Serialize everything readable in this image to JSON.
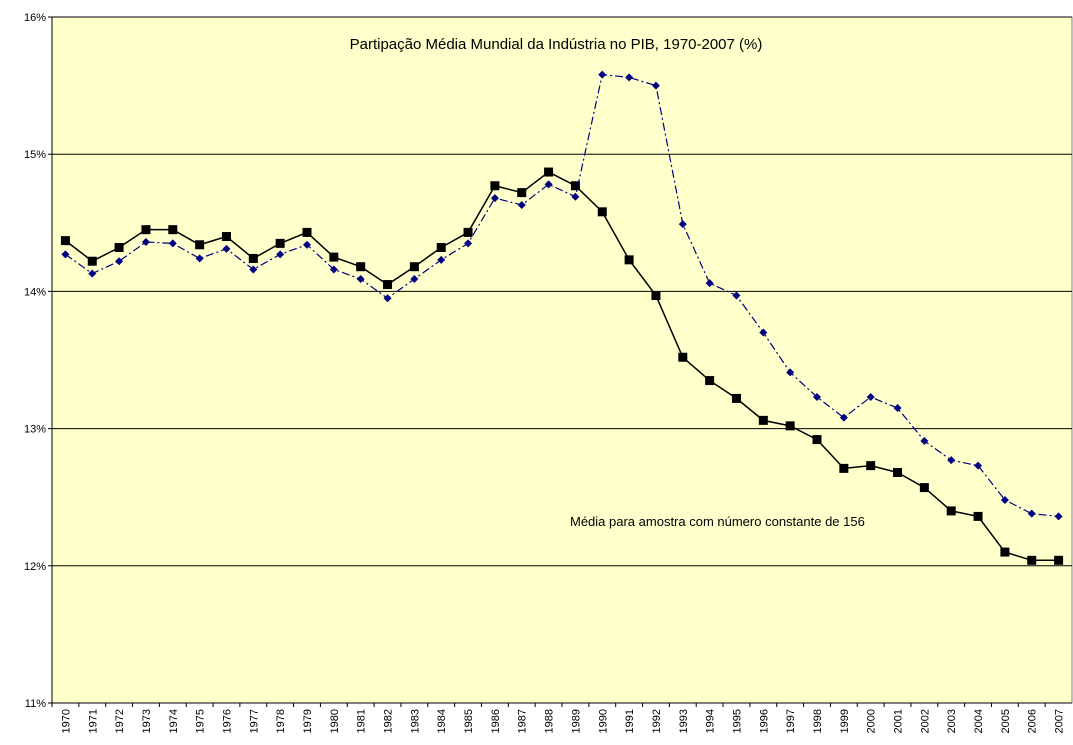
{
  "chart_data": {
    "type": "line",
    "title": "Partipação Média Mundial da Indústria no PIB, 1970-2007 (%)",
    "annotations": [
      "Média para amostra com número constante de 156"
    ],
    "categories": [
      "1970",
      "1971",
      "1972",
      "1973",
      "1974",
      "1975",
      "1976",
      "1977",
      "1978",
      "1979",
      "1980",
      "1981",
      "1982",
      "1983",
      "1984",
      "1985",
      "1986",
      "1987",
      "1988",
      "1989",
      "1990",
      "1991",
      "1992",
      "1993",
      "1994",
      "1995",
      "1996",
      "1997",
      "1998",
      "1999",
      "2000",
      "2001",
      "2002",
      "2003",
      "2004",
      "2005",
      "2006",
      "2007"
    ],
    "series": [
      {
        "color": "#000000",
        "line": "solid",
        "marker": "square",
        "values": [
          14.37,
          14.22,
          14.32,
          14.45,
          14.45,
          14.34,
          14.4,
          14.24,
          14.35,
          14.43,
          14.25,
          14.18,
          14.05,
          14.18,
          14.32,
          14.43,
          14.77,
          14.72,
          14.87,
          14.77,
          14.58,
          14.23,
          13.97,
          13.52,
          13.35,
          13.22,
          13.06,
          13.02,
          12.92,
          12.71,
          12.73,
          12.68,
          12.57,
          12.4,
          12.36,
          12.1,
          12.04,
          12.04
        ]
      },
      {
        "color": "#000080",
        "line": "dashdot",
        "marker": "diamond",
        "values": [
          14.27,
          14.13,
          14.22,
          14.36,
          14.35,
          14.24,
          14.31,
          14.16,
          14.27,
          14.34,
          14.16,
          14.09,
          13.95,
          14.09,
          14.23,
          14.35,
          14.68,
          14.63,
          14.78,
          14.69,
          15.58,
          15.56,
          15.5,
          14.49,
          14.06,
          13.97,
          13.7,
          13.41,
          13.23,
          13.08,
          13.23,
          13.15,
          12.91,
          12.77,
          12.73,
          12.48,
          12.38,
          12.36
        ]
      }
    ],
    "ylim": [
      11,
      16
    ],
    "yticks": [
      {
        "value": 11,
        "label": "11%"
      },
      {
        "value": 12,
        "label": "12%"
      },
      {
        "value": 13,
        "label": "13%"
      },
      {
        "value": 14,
        "label": "14%"
      },
      {
        "value": 15,
        "label": "15%"
      },
      {
        "value": 16,
        "label": "16%"
      }
    ],
    "grid": true,
    "background": "#ffffcc"
  }
}
